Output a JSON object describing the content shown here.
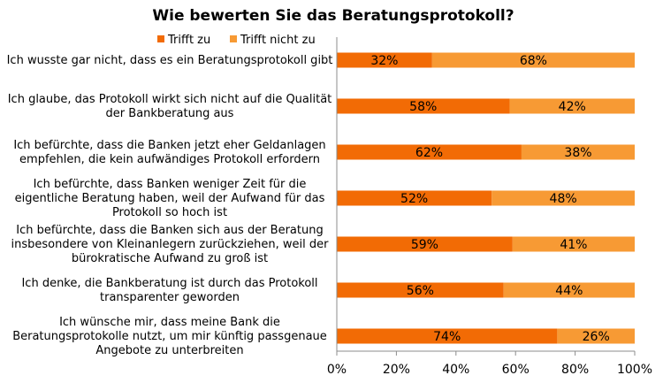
{
  "chart_data": {
    "type": "bar",
    "orientation": "horizontal",
    "stacked": true,
    "title": "Wie bewerten Sie das Beratungsprotokoll?",
    "legend_position": "top",
    "categories": [
      [
        "Ich wusste gar nicht, dass es ein Beratungsprotokoll gibt"
      ],
      [
        "Ich glaube, das Protokoll wirkt sich nicht auf die Qualität",
        "der Bankberatung aus"
      ],
      [
        "Ich befürchte, dass die Banken jetzt eher Geldanlagen",
        "empfehlen, die kein aufwändiges Protokoll erfordern"
      ],
      [
        "Ich befürchte, dass Banken weniger Zeit für die",
        "eigentliche Beratung haben, weil der Aufwand für das",
        "Protokoll so hoch ist"
      ],
      [
        "Ich befürchte, dass die Banken sich aus der Beratung",
        "insbesondere von Kleinanlegern zurückziehen, weil der",
        "bürokratische Aufwand zu groß ist"
      ],
      [
        "Ich denke, die Bankberatung ist durch das Protokoll",
        "transparenter geworden"
      ],
      [
        "Ich wünsche mir, dass meine Bank die",
        "Beratungsprotokolle nutzt, um mir künftig   passgenaue",
        "Angebote zu unterbreiten"
      ]
    ],
    "series": [
      {
        "name": "Trifft zu",
        "color": "#f26b05",
        "values": [
          32,
          58,
          62,
          52,
          59,
          56,
          74
        ]
      },
      {
        "name": "Trifft nicht zu",
        "color": "#f79a34",
        "values": [
          68,
          42,
          38,
          48,
          41,
          44,
          26
        ]
      }
    ],
    "value_suffix": "%",
    "xlim": [
      0,
      100
    ],
    "xticks": [
      0,
      20,
      40,
      60,
      80,
      100
    ],
    "grid": false
  }
}
